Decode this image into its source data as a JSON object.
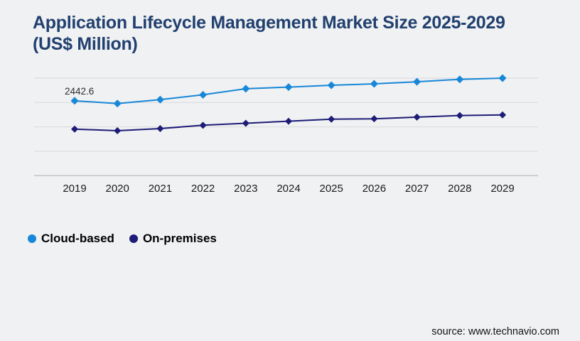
{
  "page": {
    "background": "#f0f1f3"
  },
  "header": {
    "title": "Application Lifecycle Management Market Size 2025-2029 (US$ Million)",
    "title_color": "#21406f"
  },
  "chart_data": {
    "type": "line",
    "title": "Application Lifecycle Management Market Size 2025-2029 (US$ Million)",
    "unit": "US$ Million",
    "categories": [
      "2019",
      "2020",
      "2021",
      "2022",
      "2023",
      "2024",
      "2025",
      "2026",
      "2027",
      "2028",
      "2029"
    ],
    "series": [
      {
        "name": "Cloud-based",
        "color": "#1787d8",
        "marker": "diamond",
        "values": [
          2442.6,
          2375,
          2470,
          2590,
          2740,
          2780,
          2825,
          2860,
          2910,
          2970,
          3000
        ]
      },
      {
        "name": "On-premises",
        "color": "#1d1c76",
        "marker": "diamond",
        "values": [
          1745,
          1705,
          1758,
          1840,
          1890,
          1940,
          1990,
          2000,
          2040,
          2080,
          2095
        ]
      }
    ],
    "data_labels": [
      {
        "series": "Cloud-based",
        "category": "2019",
        "text": "2442.6"
      }
    ],
    "y_axis": {
      "tick_labels_visible": false,
      "ylim": [
        600,
        3000
      ],
      "gridline_values_estimated": [
        600,
        1200,
        1800,
        2400,
        3000
      ],
      "grid": true
    },
    "x_axis": {
      "tick_labels_visible": true
    },
    "legend_position": "bottom-left",
    "values_note": "Only the 2019 Cloud-based point is labeled (2442.6); other values are estimated from point positions against unlabeled gridlines."
  },
  "legend": {
    "items": [
      {
        "label": "Cloud-based",
        "color": "#1787d8"
      },
      {
        "label": "On-premises",
        "color": "#1d1c76"
      }
    ]
  },
  "footer": {
    "source": "source: www.technavio.com"
  },
  "style_tokens": {
    "gridline_color": "#d8d8dc",
    "axis_line_color": "#c3c3c8",
    "tick_label_color": "#1b1b1b",
    "data_label_color": "#2e2e2e"
  }
}
